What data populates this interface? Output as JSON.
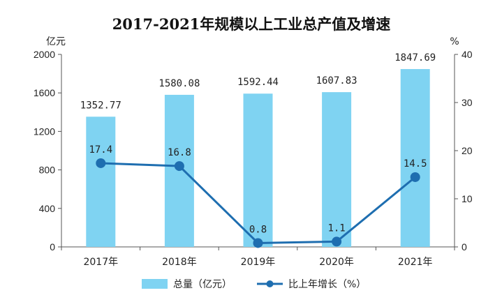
{
  "chart_data": {
    "type": "bar+line",
    "title": "2017-2021年规模以上工业总产值及增速",
    "categories": [
      "2017年",
      "2018年",
      "2019年",
      "2020年",
      "2021年"
    ],
    "series": [
      {
        "name": "总量（亿元）",
        "type": "bar",
        "axis": "left",
        "values": [
          1352.77,
          1580.08,
          1592.44,
          1607.83,
          1847.69
        ],
        "labels": [
          "1352.77",
          "1580.08",
          "1592.44",
          "1607.83",
          "1847.69"
        ],
        "color": "#7fd3f2"
      },
      {
        "name": "比上年增长（%）",
        "type": "line",
        "axis": "right",
        "values": [
          17.4,
          16.8,
          0.8,
          1.1,
          14.5
        ],
        "labels": [
          "17.4",
          "16.8",
          "0.8",
          "1.1",
          "14.5"
        ],
        "color": "#1e6eb0"
      }
    ],
    "y_left": {
      "label": "亿元",
      "min": 0,
      "max": 2000,
      "ticks": [
        "0",
        "400",
        "800",
        "1200",
        "1600",
        "2000"
      ]
    },
    "y_right": {
      "label": "%",
      "min": 0,
      "max": 40,
      "ticks": [
        "0",
        "10",
        "20",
        "30",
        "40"
      ]
    },
    "legend": {
      "position": "bottom",
      "items": [
        "总量（亿元）",
        "比上年增长（%）"
      ]
    },
    "grid": false
  }
}
